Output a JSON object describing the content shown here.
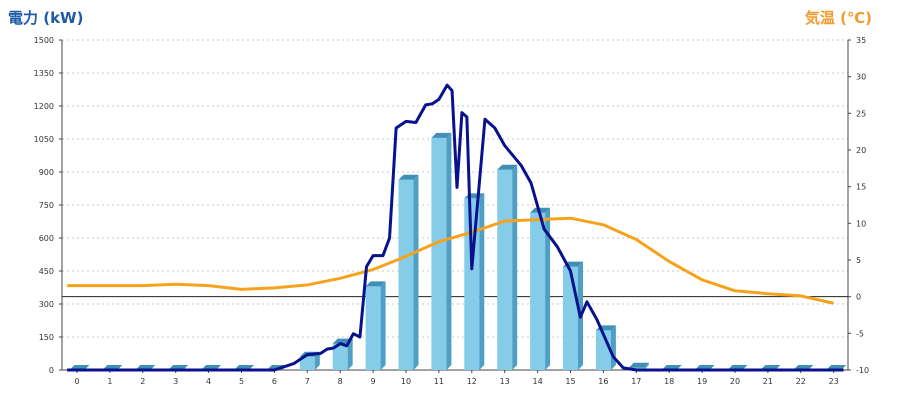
{
  "chart_data": {
    "type": "bar",
    "y_left": {
      "label": "電力 (kW)",
      "min": 0,
      "max": 1500,
      "ticks": [
        0,
        150,
        300,
        450,
        600,
        750,
        900,
        1050,
        1200,
        1350,
        1500
      ]
    },
    "y_right": {
      "label": "気温 (℃)",
      "min": -10,
      "max": 35,
      "ticks": [
        -10,
        -5,
        0,
        5,
        10,
        15,
        20,
        25,
        30,
        35
      ]
    },
    "x": [
      "0",
      "1",
      "2",
      "3",
      "4",
      "5",
      "6",
      "7",
      "8",
      "9",
      "10",
      "11",
      "12",
      "13",
      "14",
      "15",
      "16",
      "17",
      "18",
      "19",
      "20",
      "21",
      "22",
      "23"
    ],
    "grid": true,
    "bar_color": "#85cce9",
    "power_line_color": "#08128c",
    "temp_line_color": "#f5a31c",
    "bars": [
      {
        "x": 0,
        "value": 0
      },
      {
        "x": 1,
        "value": 0
      },
      {
        "x": 2,
        "value": 0
      },
      {
        "x": 3,
        "value": 0
      },
      {
        "x": 4,
        "value": 0
      },
      {
        "x": 5,
        "value": 0
      },
      {
        "x": 6,
        "value": 0
      },
      {
        "x": 7,
        "value": 60
      },
      {
        "x": 8,
        "value": 120
      },
      {
        "x": 9,
        "value": 380
      },
      {
        "x": 10,
        "value": 865
      },
      {
        "x": 11,
        "value": 1055
      },
      {
        "x": 12,
        "value": 780
      },
      {
        "x": 13,
        "value": 910
      },
      {
        "x": 14,
        "value": 715
      },
      {
        "x": 15,
        "value": 470
      },
      {
        "x": 16,
        "value": 180
      },
      {
        "x": 17,
        "value": 10
      },
      {
        "x": 18,
        "value": 0
      },
      {
        "x": 19,
        "value": 0
      },
      {
        "x": 20,
        "value": 0
      },
      {
        "x": 21,
        "value": 0
      },
      {
        "x": 22,
        "value": 0
      },
      {
        "x": 23,
        "value": 0
      }
    ],
    "power_line": [
      {
        "x": -0.3,
        "y": 0
      },
      {
        "x": 6.0,
        "y": 0
      },
      {
        "x": 6.6,
        "y": 30
      },
      {
        "x": 7.0,
        "y": 70
      },
      {
        "x": 7.4,
        "y": 75
      },
      {
        "x": 7.6,
        "y": 95
      },
      {
        "x": 7.8,
        "y": 100
      },
      {
        "x": 8.0,
        "y": 120
      },
      {
        "x": 8.2,
        "y": 110
      },
      {
        "x": 8.4,
        "y": 165
      },
      {
        "x": 8.6,
        "y": 150
      },
      {
        "x": 8.8,
        "y": 470
      },
      {
        "x": 9.0,
        "y": 520
      },
      {
        "x": 9.3,
        "y": 520
      },
      {
        "x": 9.5,
        "y": 600
      },
      {
        "x": 9.7,
        "y": 1100
      },
      {
        "x": 10.0,
        "y": 1130
      },
      {
        "x": 10.3,
        "y": 1125
      },
      {
        "x": 10.6,
        "y": 1205
      },
      {
        "x": 10.8,
        "y": 1210
      },
      {
        "x": 11.0,
        "y": 1230
      },
      {
        "x": 11.25,
        "y": 1295
      },
      {
        "x": 11.4,
        "y": 1270
      },
      {
        "x": 11.55,
        "y": 830
      },
      {
        "x": 11.7,
        "y": 1170
      },
      {
        "x": 11.85,
        "y": 1150
      },
      {
        "x": 12.0,
        "y": 460
      },
      {
        "x": 12.4,
        "y": 1140
      },
      {
        "x": 12.7,
        "y": 1100
      },
      {
        "x": 13.0,
        "y": 1020
      },
      {
        "x": 13.5,
        "y": 930
      },
      {
        "x": 13.8,
        "y": 850
      },
      {
        "x": 14.2,
        "y": 640
      },
      {
        "x": 14.6,
        "y": 560
      },
      {
        "x": 15.0,
        "y": 450
      },
      {
        "x": 15.3,
        "y": 240
      },
      {
        "x": 15.5,
        "y": 310
      },
      {
        "x": 15.8,
        "y": 230
      },
      {
        "x": 16.3,
        "y": 60
      },
      {
        "x": 16.6,
        "y": 10
      },
      {
        "x": 17.0,
        "y": 0
      },
      {
        "x": 23.3,
        "y": 0
      }
    ],
    "temp_line": [
      {
        "x": -0.3,
        "y": 1.5
      },
      {
        "x": 1,
        "y": 1.5
      },
      {
        "x": 2,
        "y": 1.5
      },
      {
        "x": 3,
        "y": 1.7
      },
      {
        "x": 4,
        "y": 1.5
      },
      {
        "x": 5,
        "y": 1.0
      },
      {
        "x": 6,
        "y": 1.2
      },
      {
        "x": 7,
        "y": 1.6
      },
      {
        "x": 8,
        "y": 2.5
      },
      {
        "x": 9,
        "y": 3.7
      },
      {
        "x": 10,
        "y": 5.5
      },
      {
        "x": 11,
        "y": 7.5
      },
      {
        "x": 12,
        "y": 8.8
      },
      {
        "x": 13,
        "y": 10.3
      },
      {
        "x": 14,
        "y": 10.5
      },
      {
        "x": 15,
        "y": 10.7
      },
      {
        "x": 16,
        "y": 9.8
      },
      {
        "x": 17,
        "y": 7.8
      },
      {
        "x": 18,
        "y": 4.8
      },
      {
        "x": 19,
        "y": 2.3
      },
      {
        "x": 20,
        "y": 0.8
      },
      {
        "x": 21,
        "y": 0.4
      },
      {
        "x": 22,
        "y": 0.1
      },
      {
        "x": 23,
        "y": -0.9
      }
    ]
  }
}
